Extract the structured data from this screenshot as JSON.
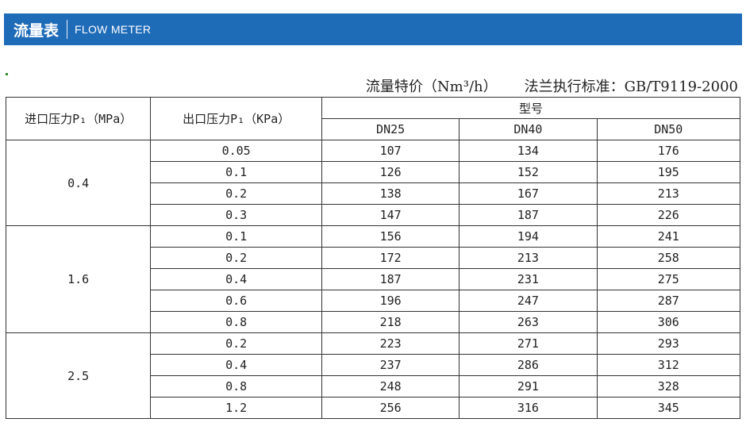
{
  "header": {
    "title_cn": "流量表",
    "title_en": "FLOW METER"
  },
  "caption": {
    "left": "流量特价（Nm³/h）",
    "right": "法兰执行标准：GB/T9119-2000"
  },
  "table": {
    "col_inlet": "进口压力P₁（MPa）",
    "col_outlet": "出口压力P₁（KPa）",
    "col_model": "型号",
    "models": [
      "DN25",
      "DN40",
      "DN50"
    ],
    "groups": [
      {
        "inlet": "0.4",
        "rows": [
          {
            "outlet": "0.05",
            "v": [
              "107",
              "134",
              "176"
            ]
          },
          {
            "outlet": "0.1",
            "v": [
              "126",
              "152",
              "195"
            ]
          },
          {
            "outlet": "0.2",
            "v": [
              "138",
              "167",
              "213"
            ]
          },
          {
            "outlet": "0.3",
            "v": [
              "147",
              "187",
              "226"
            ]
          }
        ]
      },
      {
        "inlet": "1.6",
        "rows": [
          {
            "outlet": "0.1",
            "v": [
              "156",
              "194",
              "241"
            ]
          },
          {
            "outlet": "0.2",
            "v": [
              "172",
              "213",
              "258"
            ]
          },
          {
            "outlet": "0.4",
            "v": [
              "187",
              "231",
              "275"
            ]
          },
          {
            "outlet": "0.6",
            "v": [
              "196",
              "247",
              "287"
            ]
          },
          {
            "outlet": "0.8",
            "v": [
              "218",
              "263",
              "306"
            ]
          }
        ]
      },
      {
        "inlet": "2.5",
        "rows": [
          {
            "outlet": "0.2",
            "v": [
              "223",
              "271",
              "293"
            ]
          },
          {
            "outlet": "0.4",
            "v": [
              "237",
              "286",
              "312"
            ]
          },
          {
            "outlet": "0.8",
            "v": [
              "248",
              "291",
              "328"
            ]
          },
          {
            "outlet": "1.2",
            "v": [
              "256",
              "316",
              "345"
            ]
          }
        ]
      }
    ]
  },
  "colors": {
    "header_bg": "#1e6bb8",
    "header_text": "#ffffff",
    "border": "#333333"
  }
}
